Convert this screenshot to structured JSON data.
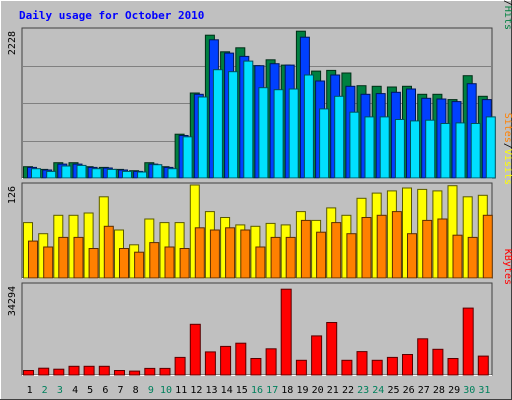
{
  "chart_data": {
    "type": "bar",
    "title": "Daily usage for October 2010",
    "categories": [
      "1",
      "2",
      "3",
      "4",
      "5",
      "6",
      "7",
      "8",
      "9",
      "10",
      "11",
      "12",
      "13",
      "14",
      "15",
      "16",
      "17",
      "18",
      "19",
      "20",
      "21",
      "22",
      "23",
      "24",
      "25",
      "26",
      "27",
      "28",
      "29",
      "30",
      "31"
    ],
    "weekend_days": [
      "2",
      "3",
      "9",
      "10",
      "16",
      "17",
      "23",
      "24",
      "30",
      "31"
    ],
    "panels": [
      {
        "name": "hits-panel",
        "ymax": 2228,
        "ymax_label": "2228",
        "gridlines": true,
        "legend": [
          "Pages",
          "/",
          "Files",
          "/",
          "Hits"
        ],
        "series": [
          {
            "name": "Hits",
            "color": "#008040",
            "values": [
              170,
              130,
              230,
              230,
              170,
              160,
              130,
              110,
              230,
              170,
              660,
              1280,
              2150,
              1900,
              1960,
              1690,
              1780,
              1700,
              2210,
              1610,
              1620,
              1580,
              1390,
              1380,
              1370,
              1380,
              1260,
              1260,
              1180,
              1540,
              1230
            ]
          },
          {
            "name": "Files",
            "color": "#0040ff",
            "values": [
              160,
              120,
              210,
              210,
              160,
              150,
              120,
              100,
              210,
              160,
              640,
              1260,
              2080,
              1880,
              1830,
              1690,
              1720,
              1700,
              2120,
              1460,
              1550,
              1380,
              1260,
              1270,
              1290,
              1340,
              1200,
              1190,
              1150,
              1420,
              1180
            ]
          },
          {
            "name": "Pages",
            "color": "#00e0ff",
            "values": [
              140,
              100,
              180,
              190,
              140,
              130,
              100,
              90,
              200,
              140,
              620,
              1220,
              1630,
              1600,
              1760,
              1360,
              1330,
              1340,
              1550,
              1040,
              1230,
              990,
              920,
              920,
              880,
              860,
              870,
              820,
              830,
              820,
              920
            ]
          }
        ]
      },
      {
        "name": "visits-panel",
        "ymax": 126,
        "ymax_label": "126",
        "gridlines": false,
        "legend": [
          "Sites",
          "/",
          "Visits"
        ],
        "series": [
          {
            "name": "Visits",
            "color": "#ffff00",
            "values": [
              75,
              60,
              85,
              85,
              88,
              110,
              65,
              45,
              80,
              75,
              75,
              126,
              90,
              82,
              72,
              70,
              74,
              72,
              90,
              78,
              95,
              85,
              108,
              115,
              118,
              122,
              120,
              118,
              125,
              110,
              112
            ]
          },
          {
            "name": "Sites",
            "color": "#ff8000",
            "values": [
              50,
              42,
              55,
              55,
              40,
              70,
              40,
              35,
              48,
              42,
              40,
              68,
              65,
              68,
              65,
              42,
              55,
              55,
              78,
              62,
              75,
              60,
              82,
              85,
              90,
              60,
              78,
              80,
              58,
              55,
              85
            ]
          }
        ]
      },
      {
        "name": "kbytes-panel",
        "ymax": 34294,
        "ymax_label": "34294",
        "gridlines": false,
        "legend": [
          "KBytes"
        ],
        "series": [
          {
            "name": "KBytes",
            "color": "#ff0000",
            "values": [
              1700,
              2600,
              2200,
              3300,
              3300,
              3300,
              1700,
              1500,
              2500,
              2500,
              6700,
              19300,
              8800,
              10900,
              12100,
              6300,
              10000,
              32700,
              5600,
              14900,
              20000,
              5600,
              8900,
              5600,
              6700,
              7800,
              13800,
              9800,
              6300,
              25500,
              7200
            ]
          }
        ]
      }
    ]
  },
  "colors": {
    "background": "#c0c0c0",
    "title": "#0000ff",
    "weekday_label": "#000000",
    "weekend_label": "#00805c",
    "grid": "#808080"
  }
}
